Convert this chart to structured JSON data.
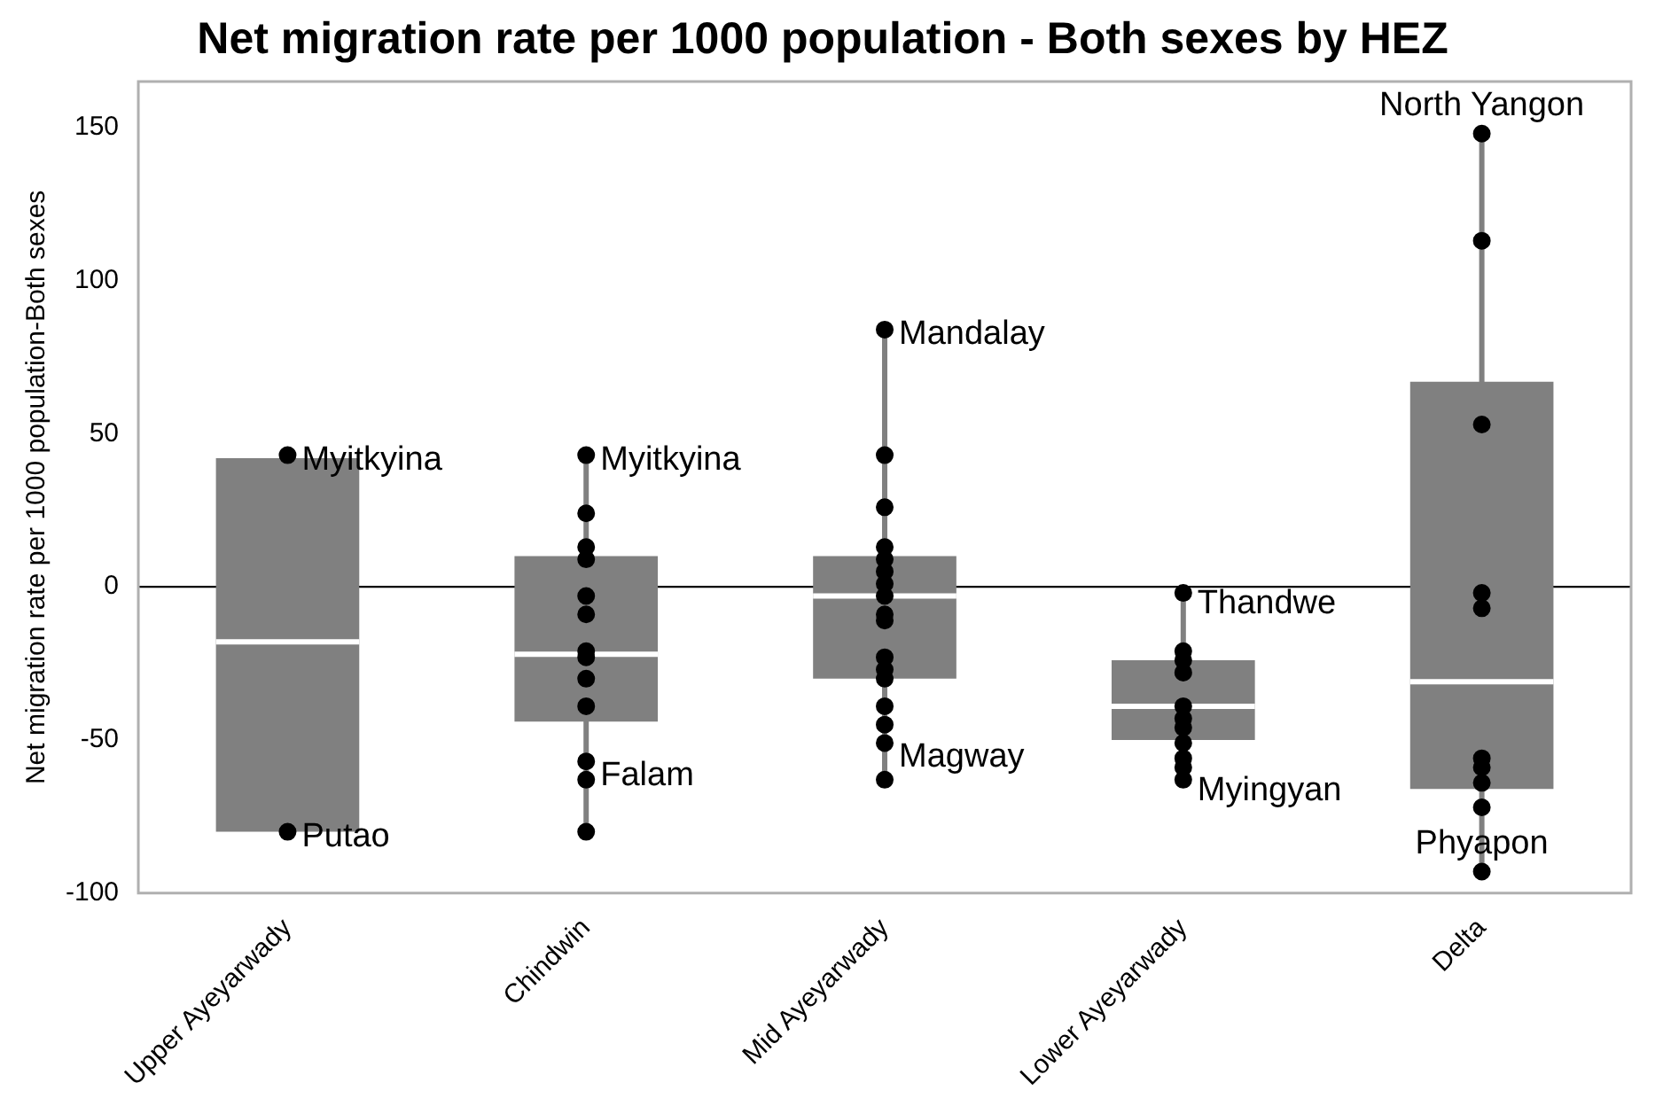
{
  "chart_data": {
    "type": "box",
    "title": "Net migration rate per 1000 population - Both sexes by HEZ",
    "ylabel": "Net migration rate per 1000 population-Both sexes",
    "categories": [
      "Upper Ayeyarwady",
      "Chindwin",
      "Mid Ayeyarwady",
      "Lower Ayeyarwady",
      "Delta"
    ],
    "color": "#808080",
    "boxes": [
      {
        "low": -80,
        "q1": -80,
        "median": -18,
        "q3": 42,
        "high": 43
      },
      {
        "low": -80,
        "q1": -44,
        "median": -22,
        "q3": 10,
        "high": 43
      },
      {
        "low": -63,
        "q1": -30,
        "median": -3,
        "q3": 10,
        "high": 84
      },
      {
        "low": -63,
        "q1": -50,
        "median": -39,
        "q3": -24,
        "high": -2
      },
      {
        "low": -93,
        "q1": -66,
        "median": -31,
        "q3": 67,
        "high": 148
      }
    ],
    "series": [
      {
        "type": "scatter",
        "color": "#000000",
        "x": [
          "Upper Ayeyarwady",
          "Upper Ayeyarwady",
          "Chindwin",
          "Chindwin",
          "Chindwin",
          "Chindwin",
          "Chindwin",
          "Chindwin",
          "Chindwin",
          "Chindwin",
          "Chindwin",
          "Chindwin",
          "Chindwin",
          "Chindwin",
          "Chindwin",
          "Mid Ayeyarwady",
          "Mid Ayeyarwady",
          "Mid Ayeyarwady",
          "Mid Ayeyarwady",
          "Mid Ayeyarwady",
          "Mid Ayeyarwady",
          "Mid Ayeyarwady",
          "Mid Ayeyarwady",
          "Mid Ayeyarwady",
          "Mid Ayeyarwady",
          "Mid Ayeyarwady",
          "Mid Ayeyarwady",
          "Mid Ayeyarwady",
          "Mid Ayeyarwady",
          "Mid Ayeyarwady",
          "Mid Ayeyarwady",
          "Mid Ayeyarwady",
          "Lower Ayeyarwady",
          "Lower Ayeyarwady",
          "Lower Ayeyarwady",
          "Lower Ayeyarwady",
          "Lower Ayeyarwady",
          "Lower Ayeyarwady",
          "Lower Ayeyarwady",
          "Lower Ayeyarwady",
          "Lower Ayeyarwady",
          "Lower Ayeyarwady",
          "Lower Ayeyarwady",
          "Delta",
          "Delta",
          "Delta",
          "Delta",
          "Delta",
          "Delta",
          "Delta",
          "Delta",
          "Delta",
          "Delta"
        ],
        "values": [
          43,
          -80,
          43,
          24,
          13,
          9,
          -3,
          -9,
          -21,
          -23,
          -30,
          -39,
          -57,
          -63,
          -80,
          84,
          43,
          26,
          13,
          9,
          5,
          1,
          -3,
          -9,
          -11,
          -23,
          -27,
          -30,
          -39,
          -45,
          -51,
          -63,
          -2,
          -21,
          -24,
          -28,
          -39,
          -43,
          -46,
          -51,
          -56,
          -59,
          -63,
          148,
          113,
          53,
          -2,
          -7,
          -56,
          -59,
          -64,
          -72,
          -93
        ]
      }
    ],
    "ylim": [
      -100,
      165
    ],
    "yticks": [
      -100,
      -50,
      0,
      50,
      100,
      150
    ],
    "ref_lines": [
      {
        "axis": "y",
        "value": 0,
        "color": "#000000"
      }
    ],
    "annotations": [
      {
        "text": "Myitkyina",
        "x": "Upper Ayeyarwady",
        "y": 43
      },
      {
        "text": "Putao",
        "x": "Upper Ayeyarwady",
        "y": -80
      },
      {
        "text": "Myitkyina",
        "x": "Chindwin",
        "y": 43
      },
      {
        "text": "Falam",
        "x": "Chindwin",
        "y": -60
      },
      {
        "text": "Mandalay",
        "x": "Mid Ayeyarwady",
        "y": 84
      },
      {
        "text": "Magway",
        "x": "Mid Ayeyarwady",
        "y": -54
      },
      {
        "text": "Thandwe",
        "x": "Lower Ayeyarwady",
        "y": -4
      },
      {
        "text": "Myingyan",
        "x": "Lower Ayeyarwady",
        "y": -65
      },
      {
        "text": "North Yangon",
        "x": "Delta",
        "y": 148
      },
      {
        "text": "Phyapon",
        "x": "Delta",
        "y": -93
      }
    ],
    "legend": false,
    "grid": false
  }
}
